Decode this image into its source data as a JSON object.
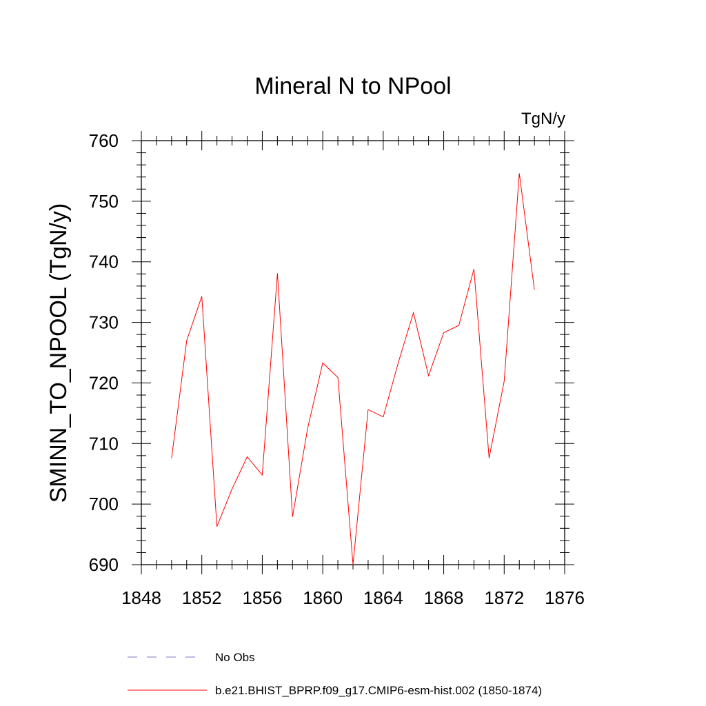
{
  "chart_data": {
    "type": "line",
    "title": "Mineral N to NPool",
    "units_label": "TgN/y",
    "ylabel": "SMINN_TO_NPOOL  (TgN/y)",
    "xlabel": "",
    "xlim": [
      1848,
      1876
    ],
    "ylim": [
      690,
      760
    ],
    "x_ticks": [
      1848,
      1852,
      1856,
      1860,
      1864,
      1868,
      1872,
      1876
    ],
    "y_ticks": [
      690,
      700,
      710,
      720,
      730,
      740,
      750,
      760
    ],
    "grid": false,
    "series": [
      {
        "name": "b.e21.BHIST_BPRP.f09_g17.CMIP6-esm-hist.002 (1850-1874)",
        "color": "#ff0000",
        "x": [
          1850,
          1851,
          1852,
          1853,
          1854,
          1855,
          1856,
          1857,
          1858,
          1859,
          1860,
          1861,
          1862,
          1863,
          1864,
          1865,
          1866,
          1867,
          1868,
          1869,
          1870,
          1871,
          1872,
          1873,
          1874
        ],
        "y": [
          707.6,
          727.0,
          734.3,
          696.3,
          702.5,
          707.8,
          704.8,
          738.1,
          697.9,
          712.5,
          723.3,
          720.9,
          690.0,
          715.6,
          714.4,
          723.4,
          731.6,
          721.2,
          728.3,
          729.5,
          738.8,
          707.6,
          720.3,
          754.6,
          735.4
        ]
      }
    ],
    "legend": {
      "placement": "bottom",
      "entries": [
        {
          "label": "No Obs",
          "style": "dashed",
          "color": "#7a7ac8"
        },
        {
          "label": "b.e21.BHIST_BPRP.f09_g17.CMIP6-esm-hist.002 (1850-1874)",
          "style": "solid",
          "color": "#ff0000"
        }
      ]
    }
  }
}
